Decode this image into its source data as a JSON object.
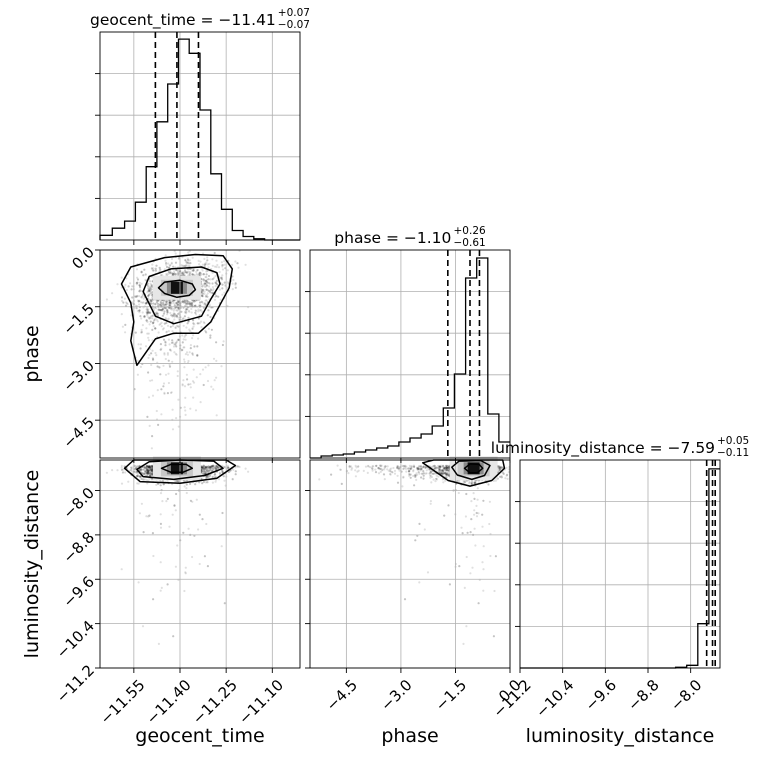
{
  "chart_data": {
    "type": "scatter",
    "subtype": "corner-plot",
    "params": [
      {
        "name": "geocent_time",
        "axis_label": "geocent_time",
        "range": [
          -11.66,
          -11.01
        ],
        "ticks": [
          -11.55,
          -11.4,
          -11.25,
          -11.1
        ],
        "tick_labels": [
          "−11.55",
          "−11.40",
          "−11.25",
          "−11.10"
        ],
        "title_main": "geocent_time = −11.41",
        "title_plus": "+0.07",
        "title_minus": "−0.07",
        "median": -11.41,
        "q_low": -11.48,
        "q_high": -11.34,
        "hist_bins": [
          -11.66,
          -11.62,
          -11.58,
          -11.545,
          -11.51,
          -11.475,
          -11.44,
          -11.405,
          -11.37,
          -11.335,
          -11.3,
          -11.265,
          -11.23,
          -11.195,
          -11.16,
          -11.125,
          -11.09,
          -11.055,
          -11.01
        ],
        "hist_counts": [
          0.02,
          0.05,
          0.08,
          0.16,
          0.31,
          0.5,
          0.66,
          0.85,
          0.79,
          0.55,
          0.28,
          0.13,
          0.04,
          0.015,
          0.005,
          0,
          0,
          0
        ],
        "hist_max": 0.88
      },
      {
        "name": "phase",
        "axis_label": "phase",
        "range": [
          -5.5,
          0.0
        ],
        "ticks": [
          -4.5,
          -3.0,
          -1.5,
          0.0
        ],
        "tick_labels": [
          "−4.5",
          "−3.0",
          "−1.5",
          "0.0"
        ],
        "title_main": "phase = −1.10",
        "title_plus": "+0.26",
        "title_minus": "−0.61",
        "median": -1.1,
        "q_low": -1.71,
        "q_high": -0.84,
        "hist_bins": [
          -5.5,
          -5.194,
          -4.889,
          -4.583,
          -4.278,
          -3.972,
          -3.667,
          -3.361,
          -3.056,
          -2.75,
          -2.444,
          -2.139,
          -1.833,
          -1.528,
          -1.222,
          -0.917,
          -0.611,
          -0.306,
          0.0
        ],
        "hist_counts": [
          0,
          0.01,
          0.015,
          0.02,
          0.03,
          0.04,
          0.05,
          0.06,
          0.08,
          0.1,
          0.12,
          0.16,
          0.25,
          0.42,
          0.9,
          1.0,
          0.22,
          0.08
        ],
        "hist_max": 1.04
      },
      {
        "name": "luminosity_distance",
        "axis_label": "luminosity_distance",
        "range": [
          -11.2,
          -7.45
        ],
        "ticks": [
          -11.2,
          -10.4,
          -9.6,
          -8.8,
          -8.0
        ],
        "tick_labels": [
          "−11.2",
          "−10.4",
          "−9.6",
          "−8.8",
          "−8.0"
        ],
        "title_main": "luminosity_distance = −7.59",
        "title_plus": "+0.05",
        "title_minus": "−0.11",
        "median": -7.59,
        "q_low": -7.7,
        "q_high": -7.54,
        "hist_bins": [
          -11.2,
          -10.992,
          -10.783,
          -10.575,
          -10.367,
          -10.158,
          -9.95,
          -9.742,
          -9.533,
          -9.325,
          -9.117,
          -8.908,
          -8.7,
          -8.492,
          -8.283,
          -8.075,
          -7.867,
          -7.658,
          -7.45
        ],
        "hist_counts": [
          0,
          0,
          0,
          0,
          0,
          0,
          0,
          0,
          0,
          0,
          0,
          0,
          0,
          0,
          0.003,
          0.012,
          0.2,
          0.9
        ],
        "hist_max": 0.94
      }
    ],
    "contours": [
      {
        "x_param": "geocent_time",
        "y_param": "phase",
        "centre": [
          -11.41,
          -1.0
        ],
        "levels": [
          {
            "points": [
              [
                -11.47,
                -1.0
              ],
              [
                -11.45,
                -0.85
              ],
              [
                -11.4,
                -0.8
              ],
              [
                -11.36,
                -0.9
              ],
              [
                -11.35,
                -1.05
              ],
              [
                -11.37,
                -1.2
              ],
              [
                -11.41,
                -1.25
              ],
              [
                -11.45,
                -1.15
              ]
            ]
          },
          {
            "points": [
              [
                -11.52,
                -1.1
              ],
              [
                -11.5,
                -0.7
              ],
              [
                -11.43,
                -0.5
              ],
              [
                -11.33,
                -0.45
              ],
              [
                -11.28,
                -0.6
              ],
              [
                -11.27,
                -0.9
              ],
              [
                -11.3,
                -1.3
              ],
              [
                -11.33,
                -1.75
              ],
              [
                -11.42,
                -1.95
              ],
              [
                -11.48,
                -1.75
              ]
            ]
          },
          {
            "points": [
              [
                -11.56,
                -1.4
              ],
              [
                -11.59,
                -0.9
              ],
              [
                -11.56,
                -0.45
              ],
              [
                -11.45,
                -0.2
              ],
              [
                -11.35,
                -0.12
              ],
              [
                -11.26,
                -0.15
              ],
              [
                -11.23,
                -0.5
              ],
              [
                -11.24,
                -1.0
              ],
              [
                -11.27,
                -1.45
              ],
              [
                -11.3,
                -1.9
              ],
              [
                -11.34,
                -2.2
              ],
              [
                -11.42,
                -2.2
              ],
              [
                -11.48,
                -2.35
              ],
              [
                -11.54,
                -3.05
              ],
              [
                -11.56,
                -2.4
              ],
              [
                -11.55,
                -1.9
              ]
            ]
          }
        ]
      },
      {
        "x_param": "geocent_time",
        "y_param": "luminosity_distance",
        "centre": [
          -11.41,
          -7.6
        ],
        "levels": [
          {
            "points": [
              [
                -11.46,
                -7.6
              ],
              [
                -11.43,
                -7.53
              ],
              [
                -11.38,
                -7.53
              ],
              [
                -11.36,
                -7.6
              ],
              [
                -11.39,
                -7.67
              ],
              [
                -11.43,
                -7.67
              ]
            ]
          },
          {
            "points": [
              [
                -11.54,
                -7.62
              ],
              [
                -11.5,
                -7.48
              ],
              [
                -11.4,
                -7.45
              ],
              [
                -11.29,
                -7.47
              ],
              [
                -11.26,
                -7.6
              ],
              [
                -11.32,
                -7.73
              ],
              [
                -11.42,
                -7.8
              ],
              [
                -11.52,
                -7.75
              ]
            ]
          },
          {
            "points": [
              [
                -11.58,
                -7.6
              ],
              [
                -11.55,
                -7.45
              ],
              [
                -11.25,
                -7.45
              ],
              [
                -11.22,
                -7.55
              ],
              [
                -11.28,
                -7.78
              ],
              [
                -11.4,
                -7.87
              ],
              [
                -11.53,
                -7.84
              ]
            ]
          }
        ]
      },
      {
        "x_param": "phase",
        "y_param": "luminosity_distance",
        "centre": [
          -1.0,
          -7.6
        ],
        "levels": [
          {
            "points": [
              [
                -1.25,
                -7.6
              ],
              [
                -1.1,
                -7.52
              ],
              [
                -0.85,
                -7.53
              ],
              [
                -0.75,
                -7.6
              ],
              [
                -0.9,
                -7.68
              ],
              [
                -1.1,
                -7.68
              ]
            ]
          },
          {
            "points": [
              [
                -1.6,
                -7.58
              ],
              [
                -1.4,
                -7.47
              ],
              [
                -0.8,
                -7.46
              ],
              [
                -0.55,
                -7.55
              ],
              [
                -0.7,
                -7.73
              ],
              [
                -1.05,
                -7.8
              ],
              [
                -1.45,
                -7.72
              ]
            ]
          },
          {
            "points": [
              [
                -2.4,
                -7.5
              ],
              [
                -2.1,
                -7.45
              ],
              [
                -0.2,
                -7.45
              ],
              [
                -0.15,
                -7.6
              ],
              [
                -0.5,
                -7.82
              ],
              [
                -1.1,
                -7.92
              ],
              [
                -1.7,
                -7.82
              ]
            ]
          }
        ]
      }
    ],
    "grid": true,
    "legend": "none"
  }
}
